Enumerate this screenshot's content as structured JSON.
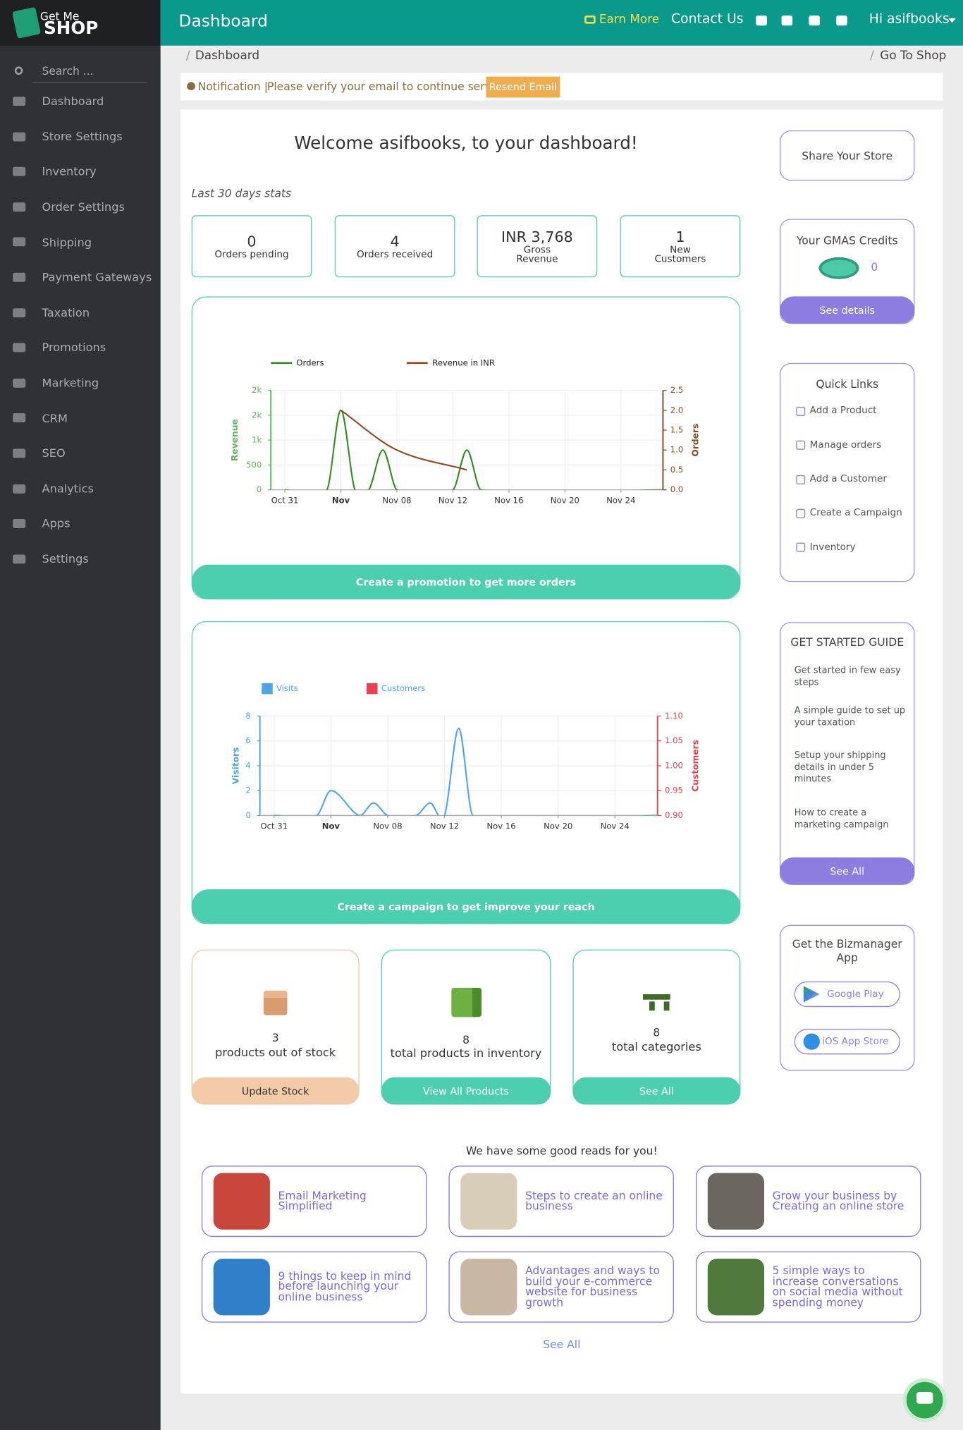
{
  "sidebar": {
    "logo": {
      "top": "Get Me",
      "bottom": "SHOP"
    },
    "search": "Search ...",
    "menu": [
      "Dashboard",
      "Store Settings",
      "Inventory",
      "Order Settings",
      "Shipping",
      "Payment Gateways",
      "Taxation",
      "Promotions",
      "Marketing",
      "CRM",
      "SEO",
      "Analytics",
      "Apps",
      "Settings"
    ]
  },
  "header": {
    "title": "Dashboard",
    "earn": "Earn More",
    "contact": "Contact Us",
    "user": "Hi asifbooks"
  },
  "breadcrumb": {
    "separator": "/",
    "current": "Dashboard",
    "shop": "Go To Shop"
  },
  "notification": {
    "label": "Notification |",
    "message": "Please verify your email to continue service.",
    "button": "Resend Email"
  },
  "welcome": "Welcome asifbooks, to your dashboard!",
  "stats_caption": "Last 30 days stats",
  "stats": [
    {
      "value": "0",
      "label": "Orders pending"
    },
    {
      "value": "4",
      "label": "Orders received"
    },
    {
      "value": "INR 3,768",
      "label": "Gross Revenue"
    },
    {
      "value": "1",
      "label": "New Customers"
    }
  ],
  "chart_data": [
    {
      "type": "line",
      "ylabel": "Revenue",
      "y2label": "Orders",
      "xlim": [
        "Oct 30",
        "Nov 27"
      ],
      "xticks": [
        "Oct 31",
        {
          "value": "Nov 04",
          "label": "Nov"
        },
        "Nov 08",
        "Nov 12",
        "Nov 16",
        "Nov 20",
        "Nov 24"
      ],
      "ylim": [
        0,
        2000
      ],
      "yticks": [
        0,
        500,
        {
          "value": 1000,
          "label": "1k"
        },
        {
          "value": 1500,
          "label": "2k"
        },
        {
          "value": 2000,
          "label": "2k"
        }
      ],
      "y2lim": [
        0,
        2.5
      ],
      "y2ticks": [
        {
          "value": 0,
          "label": "0.0"
        },
        0.5,
        {
          "value": 1,
          "label": "1.0"
        },
        1.5,
        {
          "value": 2,
          "label": "2.0"
        },
        2.5
      ],
      "grid": true,
      "series": [
        {
          "name": "Orders",
          "color": "#2f8a1f",
          "axis": "y2",
          "x": [
            "Oct 31",
            "Nov 03",
            "Nov 04",
            "Nov 05",
            "Nov 06",
            "Nov 07",
            "Nov 08",
            "Nov 12",
            "Nov 13",
            "Nov 14",
            "Nov 27"
          ],
          "values": [
            0,
            0,
            2,
            0,
            0,
            1,
            0,
            0,
            1,
            0,
            0
          ]
        },
        {
          "name": "Revenue in INR",
          "color": "#8b4a1c",
          "x": [
            "Nov 04",
            "Nov 08",
            "Nov 13"
          ],
          "values": [
            1600,
            800,
            400
          ]
        }
      ]
    },
    {
      "type": "line",
      "ylabel": "Visitors",
      "y2label": "Customers",
      "xlim": [
        "Oct 30",
        "Nov 27"
      ],
      "xticks": [
        "Oct 31",
        {
          "value": "Nov 04",
          "label": "Nov"
        },
        "Nov 08",
        "Nov 12",
        "Nov 16",
        "Nov 20",
        "Nov 24"
      ],
      "ylim": [
        0,
        8
      ],
      "yticks": [
        0,
        2,
        4,
        6,
        8
      ],
      "y2lim": [
        0.9,
        1.1
      ],
      "y2ticks": [
        {
          "value": 0.9,
          "label": "0.90"
        },
        0.95,
        {
          "value": 1,
          "label": "1.00"
        },
        1.05,
        {
          "value": 1.1,
          "label": "1.10"
        }
      ],
      "grid": true,
      "series": [
        {
          "name": "Visits",
          "color": "#4aa6e8",
          "x": [
            "Oct 31",
            "Nov 03",
            "Nov 04",
            "Nov 06",
            "Nov 07",
            "Nov 08",
            "Nov 10",
            "Nov 11",
            "Nov 12",
            "Nov 13",
            "Nov 14",
            "Nov 27"
          ],
          "values": [
            0,
            0,
            2,
            0,
            1,
            0,
            0,
            1,
            0,
            7,
            0,
            0
          ]
        },
        {
          "name": "Customers",
          "color": "#e8414f",
          "axis": "y2"
        }
      ]
    }
  ],
  "chart_buttons": [
    "Create a promotion to get more orders",
    "Create a campaign to get improve your reach"
  ],
  "inventory": [
    {
      "value": "3",
      "label": "products out of stock",
      "button": "Update Stock"
    },
    {
      "value": "8",
      "label": "total products in inventory",
      "button": "View All Products"
    },
    {
      "value": "8",
      "label": "total categories",
      "button": "See All"
    }
  ],
  "reads": {
    "title": "We have some good reads for you!",
    "items": [
      "Email Marketing Simplified",
      "Steps to create an online business",
      "Grow your business by Creating an online store",
      "9 things to keep in mind before launching your online business",
      "Advantages and ways to build your e-commerce website for business growth",
      "5 simple ways to increase conversations on social media without spending money"
    ],
    "see_all": "See All"
  },
  "share": "Share Your Store",
  "credits": {
    "title": "Your GMAS Credits",
    "value": "0",
    "button": "See details"
  },
  "quick_links": {
    "title": "Quick Links",
    "items": [
      "Add a Product",
      "Manage orders",
      "Add a Customer",
      "Create a Campaign",
      "Inventory"
    ]
  },
  "guide": {
    "title": "GET STARTED GUIDE",
    "items": [
      "Get started in few easy steps",
      "A simple guide to set up your taxation",
      "Setup your shipping details in under 5 minutes",
      "How to create a marketing campaign"
    ],
    "button": "See All"
  },
  "app": {
    "title": "Get the Bizmanager App",
    "buttons": [
      "Google Play",
      "iOS App Store"
    ]
  }
}
